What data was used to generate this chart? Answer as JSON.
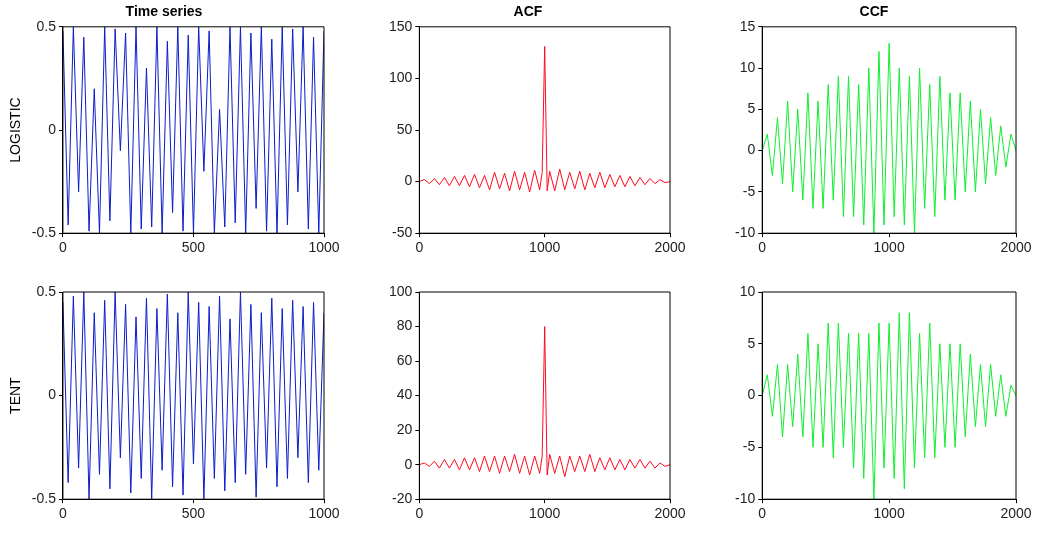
{
  "chart_data": [
    {
      "type": "line",
      "title": "Time series",
      "ylabel": "LOGISTIC",
      "xlim": [
        0,
        1000
      ],
      "xticks": [
        0,
        500,
        1000
      ],
      "ylim": [
        -0.5,
        0.5
      ],
      "yticks": [
        -0.5,
        0,
        0.5
      ],
      "grid": false,
      "legend": false,
      "marker": "none",
      "x": [
        0,
        20,
        40,
        60,
        80,
        100,
        120,
        140,
        160,
        180,
        200,
        220,
        240,
        260,
        280,
        300,
        320,
        340,
        360,
        380,
        400,
        420,
        440,
        460,
        480,
        500,
        520,
        540,
        560,
        580,
        600,
        620,
        640,
        660,
        680,
        700,
        720,
        740,
        760,
        780,
        800,
        820,
        840,
        860,
        880,
        900,
        920,
        940,
        960,
        980,
        1000
      ],
      "series": [
        {
          "color": "#0b1ec8",
          "values": [
            0.48,
            -0.46,
            0.5,
            -0.3,
            0.45,
            -0.49,
            0.2,
            -0.5,
            0.5,
            -0.44,
            0.49,
            -0.1,
            0.47,
            -0.5,
            0.5,
            -0.48,
            0.3,
            -0.47,
            0.5,
            -0.5,
            0.43,
            -0.4,
            0.5,
            -0.49,
            0.46,
            -0.5,
            0.5,
            -0.2,
            0.48,
            -0.5,
            0.1,
            -0.47,
            0.5,
            -0.45,
            0.5,
            -0.5,
            0.47,
            -0.38,
            0.5,
            -0.49,
            0.44,
            -0.5,
            0.5,
            -0.46,
            0.49,
            -0.3,
            0.5,
            -0.48,
            0.45,
            -0.5,
            0.48
          ]
        }
      ]
    },
    {
      "type": "line",
      "title": "ACF",
      "xlim": [
        0,
        2000
      ],
      "xticks": [
        0,
        1000,
        2000
      ],
      "ylim": [
        -50,
        150
      ],
      "yticks": [
        -50,
        0,
        50,
        100,
        150
      ],
      "grid": false,
      "legend": false,
      "marker": "none",
      "x": [
        0,
        40,
        80,
        120,
        160,
        200,
        240,
        280,
        320,
        360,
        400,
        440,
        480,
        520,
        560,
        600,
        640,
        680,
        720,
        760,
        800,
        840,
        880,
        920,
        960,
        980,
        1000,
        1020,
        1040,
        1080,
        1120,
        1160,
        1200,
        1240,
        1280,
        1320,
        1360,
        1400,
        1440,
        1480,
        1520,
        1560,
        1600,
        1640,
        1680,
        1720,
        1760,
        1800,
        1840,
        1880,
        1920,
        1960,
        2000
      ],
      "series": [
        {
          "color": "#ff0a1e",
          "values": [
            0,
            2,
            -2,
            3,
            -3,
            4,
            -4,
            5,
            -4,
            6,
            -5,
            7,
            -6,
            6,
            -8,
            9,
            -7,
            8,
            -9,
            10,
            -8,
            9,
            -10,
            11,
            -8,
            9,
            131,
            -9,
            10,
            -9,
            12,
            -8,
            9,
            -7,
            10,
            -8,
            8,
            -6,
            9,
            -6,
            7,
            -5,
            6,
            -5,
            5,
            -4,
            4,
            -3,
            3,
            -2,
            2,
            -1,
            0
          ]
        }
      ]
    },
    {
      "type": "line",
      "title": "CCF",
      "xlim": [
        0,
        2000
      ],
      "xticks": [
        0,
        1000,
        2000
      ],
      "ylim": [
        -10,
        15
      ],
      "yticks": [
        -10,
        -5,
        0,
        5,
        10,
        15
      ],
      "grid": false,
      "legend": false,
      "marker": "none",
      "x": [
        0,
        40,
        80,
        120,
        160,
        200,
        240,
        280,
        320,
        360,
        400,
        440,
        480,
        520,
        560,
        600,
        640,
        680,
        720,
        760,
        800,
        840,
        880,
        920,
        960,
        1000,
        1040,
        1080,
        1120,
        1160,
        1200,
        1240,
        1280,
        1320,
        1360,
        1400,
        1440,
        1480,
        1520,
        1560,
        1600,
        1640,
        1680,
        1720,
        1760,
        1800,
        1840,
        1880,
        1920,
        1960,
        2000
      ],
      "series": [
        {
          "color": "#10ee30",
          "values": [
            0,
            2,
            -3,
            4,
            -4,
            6,
            -5,
            5,
            -6,
            7,
            -7,
            6,
            -7,
            8,
            -6,
            9,
            -8,
            9,
            -8,
            8,
            -9,
            10,
            -10,
            12,
            -9,
            13,
            -8,
            10,
            -9,
            9,
            -10,
            10,
            -7,
            8,
            -8,
            9,
            -6,
            7,
            -6,
            7,
            -5,
            6,
            -5,
            5,
            -4,
            4,
            -3,
            3,
            -2,
            2,
            0
          ]
        }
      ]
    },
    {
      "type": "line",
      "ylabel": "TENT",
      "xlim": [
        0,
        1000
      ],
      "xticks": [
        0,
        500,
        1000
      ],
      "ylim": [
        -0.5,
        0.5
      ],
      "yticks": [
        -0.5,
        0,
        0.5
      ],
      "grid": false,
      "legend": false,
      "marker": "none",
      "x": [
        0,
        20,
        40,
        60,
        80,
        100,
        120,
        140,
        160,
        180,
        200,
        220,
        240,
        260,
        280,
        300,
        320,
        340,
        360,
        380,
        400,
        420,
        440,
        460,
        480,
        500,
        520,
        540,
        560,
        580,
        600,
        620,
        640,
        660,
        680,
        700,
        720,
        740,
        760,
        780,
        800,
        820,
        840,
        860,
        880,
        900,
        920,
        940,
        960,
        980,
        1000
      ],
      "series": [
        {
          "color": "#0b1ec8",
          "values": [
            0.45,
            -0.42,
            0.48,
            -0.35,
            0.5,
            -0.5,
            0.4,
            -0.38,
            0.46,
            -0.45,
            0.5,
            -0.3,
            0.44,
            -0.47,
            0.38,
            -0.4,
            0.47,
            -0.5,
            0.42,
            -0.36,
            0.49,
            -0.44,
            0.4,
            -0.48,
            0.5,
            -0.33,
            0.45,
            -0.5,
            0.43,
            -0.4,
            0.48,
            -0.46,
            0.37,
            -0.42,
            0.5,
            -0.38,
            0.44,
            -0.49,
            0.4,
            -0.35,
            0.47,
            -0.44,
            0.42,
            -0.4,
            0.46,
            -0.3,
            0.43,
            -0.42,
            0.45,
            -0.36,
            0.4
          ]
        }
      ]
    },
    {
      "type": "line",
      "xlim": [
        0,
        2000
      ],
      "xticks": [
        0,
        1000,
        2000
      ],
      "ylim": [
        -20,
        100
      ],
      "yticks": [
        -20,
        0,
        20,
        40,
        60,
        80,
        100
      ],
      "grid": false,
      "legend": false,
      "marker": "none",
      "x": [
        0,
        40,
        80,
        120,
        160,
        200,
        240,
        280,
        320,
        360,
        400,
        440,
        480,
        520,
        560,
        600,
        640,
        680,
        720,
        760,
        800,
        840,
        880,
        920,
        960,
        980,
        1000,
        1020,
        1040,
        1080,
        1120,
        1160,
        1200,
        1240,
        1280,
        1320,
        1360,
        1400,
        1440,
        1480,
        1520,
        1560,
        1600,
        1640,
        1680,
        1720,
        1760,
        1800,
        1840,
        1880,
        1920,
        1960,
        2000
      ],
      "series": [
        {
          "color": "#ff0a1e",
          "values": [
            0,
            1,
            -1,
            2,
            -2,
            3,
            -2,
            3,
            -3,
            4,
            -3,
            4,
            -4,
            5,
            -4,
            5,
            -5,
            5,
            -4,
            6,
            -5,
            5,
            -6,
            5,
            -5,
            5,
            80,
            -6,
            6,
            -5,
            5,
            -7,
            5,
            -4,
            5,
            -4,
            6,
            -4,
            4,
            -3,
            4,
            -3,
            3,
            -3,
            3,
            -2,
            3,
            -2,
            2,
            -2,
            1,
            -1,
            0
          ]
        }
      ]
    },
    {
      "type": "line",
      "xlim": [
        0,
        2000
      ],
      "xticks": [
        0,
        1000,
        2000
      ],
      "ylim": [
        -10,
        10
      ],
      "yticks": [
        -10,
        -5,
        0,
        5,
        10
      ],
      "grid": false,
      "legend": false,
      "marker": "none",
      "x": [
        0,
        40,
        80,
        120,
        160,
        200,
        240,
        280,
        320,
        360,
        400,
        440,
        480,
        520,
        560,
        600,
        640,
        680,
        720,
        760,
        800,
        840,
        880,
        920,
        960,
        1000,
        1040,
        1080,
        1120,
        1160,
        1200,
        1240,
        1280,
        1320,
        1360,
        1400,
        1440,
        1480,
        1520,
        1560,
        1600,
        1640,
        1680,
        1720,
        1760,
        1800,
        1840,
        1880,
        1920,
        1960,
        2000
      ],
      "series": [
        {
          "color": "#10ee30",
          "values": [
            0,
            2,
            -2,
            3,
            -4,
            3,
            -3,
            4,
            -4,
            6,
            -5,
            5,
            -5,
            7,
            -6,
            7,
            -5,
            6,
            -7,
            6,
            -8,
            6,
            -10,
            7,
            -7,
            7,
            -8,
            8,
            -9,
            8,
            -7,
            6,
            -6,
            7,
            -6,
            5,
            -5,
            5,
            -5,
            5,
            -4,
            4,
            -3,
            3,
            -3,
            3,
            -2,
            2,
            -2,
            1,
            0
          ]
        }
      ]
    }
  ]
}
